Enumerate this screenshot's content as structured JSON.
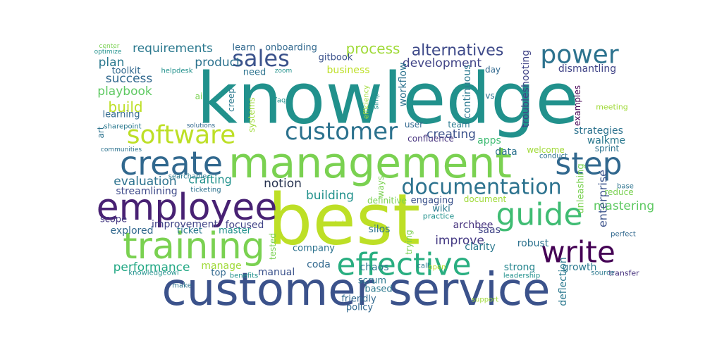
{
  "words": [
    {
      "text": "knowledge",
      "color": "#21918c"
    },
    {
      "text": "best",
      "color": "#bddf26"
    },
    {
      "text": "customer service",
      "color": "#3b528b"
    },
    {
      "text": "management",
      "color": "#7ad151"
    },
    {
      "text": "training",
      "color": "#7ad151"
    },
    {
      "text": "employee",
      "color": "#482173"
    },
    {
      "text": "create",
      "color": "#31688e"
    },
    {
      "text": "software",
      "color": "#bddf26"
    },
    {
      "text": "customer",
      "color": "#2c728e"
    },
    {
      "text": "effective",
      "color": "#28ae80"
    },
    {
      "text": "step",
      "color": "#31688e"
    },
    {
      "text": "guide",
      "color": "#3fbc73"
    },
    {
      "text": "write",
      "color": "#440154"
    },
    {
      "text": "power",
      "color": "#2c728e"
    },
    {
      "text": "documentation",
      "color": "#2c728e"
    },
    {
      "text": "sales",
      "color": "#3b528b"
    },
    {
      "text": "alternatives",
      "color": "#3e4a89"
    },
    {
      "text": "development",
      "color": "#414487"
    },
    {
      "text": "process",
      "color": "#a0da39"
    },
    {
      "text": "requirements",
      "color": "#2a788e"
    },
    {
      "text": "product",
      "color": "#2c728e"
    },
    {
      "text": "plan",
      "color": "#2a788e"
    },
    {
      "text": "success",
      "color": "#31688e"
    },
    {
      "text": "playbook",
      "color": "#5ec962"
    },
    {
      "text": "build",
      "color": "#bddf26"
    },
    {
      "text": "crafting",
      "color": "#21918c"
    },
    {
      "text": "evaluation",
      "color": "#2c728e"
    },
    {
      "text": "streamlining",
      "color": "#3e4a89"
    },
    {
      "text": "notion",
      "color": "#26324f"
    },
    {
      "text": "building",
      "color": "#21918c"
    },
    {
      "text": "creating",
      "color": "#3b528b"
    },
    {
      "text": "business",
      "color": "#bddf26"
    },
    {
      "text": "performance",
      "color": "#22a884"
    },
    {
      "text": "improve",
      "color": "#443983"
    },
    {
      "text": "mastering",
      "color": "#5ec962"
    },
    {
      "text": "enterprise",
      "color": "#3b528b"
    },
    {
      "text": "growth",
      "color": "#2a788e"
    },
    {
      "text": "strong",
      "color": "#25858e"
    },
    {
      "text": "dismantling",
      "color": "#414487"
    },
    {
      "text": "troubleshooting",
      "color": "#414487"
    },
    {
      "text": "workflow",
      "color": "#2c728e"
    },
    {
      "text": "continuous",
      "color": "#2a788e"
    },
    {
      "text": "examples",
      "color": "#440154"
    },
    {
      "text": "strategies",
      "color": "#2c728e"
    },
    {
      "text": "walkme",
      "color": "#2a788e"
    },
    {
      "text": "sprint",
      "color": "#2c728e"
    },
    {
      "text": "apps",
      "color": "#3fbc73"
    },
    {
      "text": "data",
      "color": "#2c728e"
    },
    {
      "text": "confluence",
      "color": "#46327e"
    },
    {
      "text": "user",
      "color": "#31688e"
    },
    {
      "text": "team",
      "color": "#2a788e"
    },
    {
      "text": "day",
      "color": "#31688e"
    },
    {
      "text": "vs",
      "color": "#2c728e"
    },
    {
      "text": "meeting",
      "color": "#a0da39"
    },
    {
      "text": "welcome",
      "color": "#a0da39"
    },
    {
      "text": "conduct",
      "color": "#2c728e"
    },
    {
      "text": "unleashing",
      "color": "#7ad151"
    },
    {
      "text": "reduce",
      "color": "#7ad151"
    },
    {
      "text": "base",
      "color": "#2c728e"
    },
    {
      "text": "perfect",
      "color": "#31688e"
    },
    {
      "text": "transfer",
      "color": "#46327e"
    },
    {
      "text": "source",
      "color": "#2a788e"
    },
    {
      "text": "deflection",
      "color": "#2a788e"
    },
    {
      "text": "leadership",
      "color": "#21918c"
    },
    {
      "text": "robust",
      "color": "#2c728e"
    },
    {
      "text": "saas",
      "color": "#414487"
    },
    {
      "text": "clarity",
      "color": "#2a788e"
    },
    {
      "text": "archbee",
      "color": "#46327e"
    },
    {
      "text": "engaging",
      "color": "#3b528b"
    },
    {
      "text": "document",
      "color": "#a0da39"
    },
    {
      "text": "wiki",
      "color": "#2a788e"
    },
    {
      "text": "practice",
      "color": "#21918c"
    },
    {
      "text": "definitive",
      "color": "#7ad151"
    },
    {
      "text": "ways",
      "color": "#7ad151"
    },
    {
      "text": "trying",
      "color": "#7ad151"
    },
    {
      "text": "silos",
      "color": "#2c728e"
    },
    {
      "text": "chaos",
      "color": "#2a788e"
    },
    {
      "text": "coda",
      "color": "#31688e"
    },
    {
      "text": "manual",
      "color": "#3b528b"
    },
    {
      "text": "scrum",
      "color": "#2a788e"
    },
    {
      "text": "based",
      "color": "#2a788e"
    },
    {
      "text": "friendly",
      "color": "#31688e"
    },
    {
      "text": "policy",
      "color": "#31688e"
    },
    {
      "text": "top",
      "color": "#31688e"
    },
    {
      "text": "manage",
      "color": "#a0da39"
    },
    {
      "text": "company",
      "color": "#2c728e"
    },
    {
      "text": "tested",
      "color": "#7ad151"
    },
    {
      "text": "focused",
      "color": "#414487"
    },
    {
      "text": "master",
      "color": "#21918c"
    },
    {
      "text": "ticket",
      "color": "#2a788e"
    },
    {
      "text": "improvement",
      "color": "#414487"
    },
    {
      "text": "explored",
      "color": "#31688e"
    },
    {
      "text": "scope",
      "color": "#443983"
    },
    {
      "text": "portal",
      "color": "#bddf26"
    },
    {
      "text": "searchable",
      "color": "#2a788e"
    },
    {
      "text": "ticketing",
      "color": "#2c728e"
    },
    {
      "text": "communities",
      "color": "#2c728e"
    },
    {
      "text": "art",
      "color": "#2c728e"
    },
    {
      "text": "learning",
      "color": "#31688e"
    },
    {
      "text": "sharepoint",
      "color": "#2a788e"
    },
    {
      "text": "solutions",
      "color": "#31688e"
    },
    {
      "text": "systems",
      "color": "#a0da39"
    },
    {
      "text": "creep",
      "color": "#2a788e"
    },
    {
      "text": "ai",
      "color": "#7ad151"
    },
    {
      "text": "faqs",
      "color": "#21918c"
    },
    {
      "text": "efficiency",
      "color": "#a0da39"
    },
    {
      "text": "simple",
      "color": "#21918c"
    },
    {
      "text": "toolkit",
      "color": "#31688e"
    },
    {
      "text": "helpdesk",
      "color": "#21918c"
    },
    {
      "text": "need",
      "color": "#2c728e"
    },
    {
      "text": "zoom",
      "color": "#21918c"
    },
    {
      "text": "learn",
      "color": "#31688e"
    },
    {
      "text": "onboarding",
      "color": "#31688e"
    },
    {
      "text": "gitbook",
      "color": "#3b528b"
    },
    {
      "text": "center",
      "color": "#7ad151"
    },
    {
      "text": "optimize",
      "color": "#21918c"
    },
    {
      "text": "knowledgeowl",
      "color": "#21918c"
    },
    {
      "text": "benefits",
      "color": "#21918c"
    },
    {
      "text": "make",
      "color": "#2c728e"
    },
    {
      "text": "open",
      "color": "#bddf26"
    },
    {
      "text": "call",
      "color": "#2a788e"
    },
    {
      "text": "support",
      "color": "#a0da39"
    }
  ]
}
